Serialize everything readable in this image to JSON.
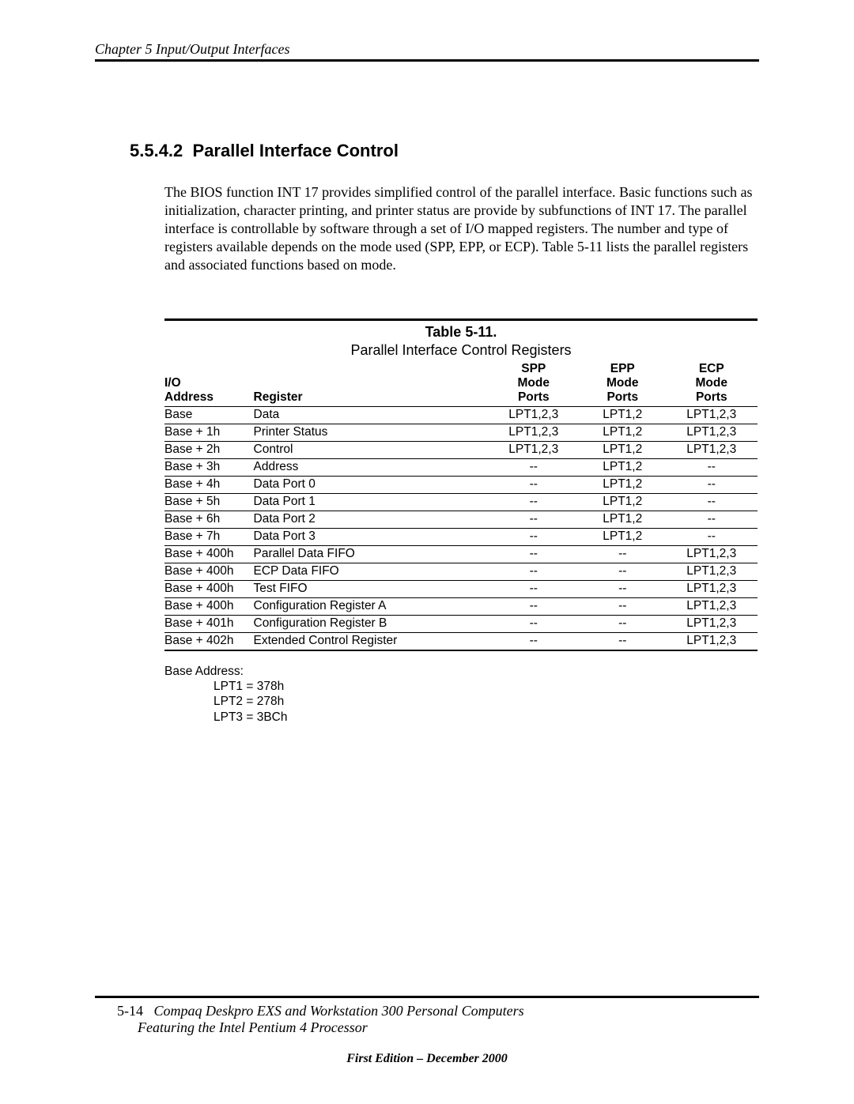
{
  "header": {
    "chapter": "Chapter 5  Input/Output Interfaces"
  },
  "section": {
    "number": "5.5.4.2",
    "title": "Parallel Interface Control"
  },
  "paragraph": "The BIOS function INT 17 provides simplified control of the parallel interface. Basic functions such as initialization, character printing,  and printer status are provide by subfunctions of INT 17. The parallel interface is controllable by software through a set of I/O mapped registers. The number and type of registers available depends on the mode used (SPP, EPP, or ECP). Table 5-11 lists the parallel registers and associated functions based on mode.",
  "table": {
    "number": "Table 5-11.",
    "caption": "Parallel Interface Control Registers",
    "columns": {
      "addr_l1": "I/O",
      "addr_l2": "Address",
      "reg": "Register",
      "spp_l1": "SPP",
      "spp_l2": "Mode",
      "spp_l3": "Ports",
      "epp_l1": "EPP",
      "epp_l2": "Mode",
      "epp_l3": "Ports",
      "ecp_l1": "ECP",
      "ecp_l2": "Mode",
      "ecp_l3": "Ports"
    },
    "rows": [
      {
        "addr": "Base",
        "reg": "Data",
        "spp": "LPT1,2,3",
        "epp": "LPT1,2",
        "ecp": "LPT1,2,3"
      },
      {
        "addr": "Base + 1h",
        "reg": "Printer Status",
        "spp": "LPT1,2,3",
        "epp": "LPT1,2",
        "ecp": "LPT1,2,3"
      },
      {
        "addr": "Base + 2h",
        "reg": "Control",
        "spp": "LPT1,2,3",
        "epp": "LPT1,2",
        "ecp": "LPT1,2,3"
      },
      {
        "addr": "Base + 3h",
        "reg": "Address",
        "spp": "--",
        "epp": "LPT1,2",
        "ecp": "--"
      },
      {
        "addr": "Base + 4h",
        "reg": "Data Port 0",
        "spp": "--",
        "epp": "LPT1,2",
        "ecp": "--"
      },
      {
        "addr": "Base + 5h",
        "reg": "Data Port 1",
        "spp": "--",
        "epp": "LPT1,2",
        "ecp": "--"
      },
      {
        "addr": "Base + 6h",
        "reg": "Data Port 2",
        "spp": "--",
        "epp": "LPT1,2",
        "ecp": "--"
      },
      {
        "addr": "Base + 7h",
        "reg": "Data Port 3",
        "spp": "--",
        "epp": "LPT1,2",
        "ecp": "--"
      },
      {
        "addr": "Base + 400h",
        "reg": "Parallel Data FIFO",
        "spp": "--",
        "epp": "--",
        "ecp": "LPT1,2,3"
      },
      {
        "addr": "Base + 400h",
        "reg": "ECP Data FIFO",
        "spp": "--",
        "epp": "--",
        "ecp": "LPT1,2,3"
      },
      {
        "addr": "Base + 400h",
        "reg": "Test FIFO",
        "spp": "--",
        "epp": "--",
        "ecp": "LPT1,2,3"
      },
      {
        "addr": "Base + 400h",
        "reg": "Configuration Register A",
        "spp": "--",
        "epp": "--",
        "ecp": "LPT1,2,3"
      },
      {
        "addr": "Base + 401h",
        "reg": "Configuration Register B",
        "spp": "--",
        "epp": "--",
        "ecp": "LPT1,2,3"
      },
      {
        "addr": "Base + 402h",
        "reg": "Extended Control Register",
        "spp": "--",
        "epp": "--",
        "ecp": "LPT1,2,3"
      }
    ]
  },
  "base_address": {
    "label": "Base Address:",
    "lpt1": "LPT1 = 378h",
    "lpt2": "LPT2 = 278h",
    "lpt3": "LPT3 = 3BCh"
  },
  "footer": {
    "page": "5-14",
    "title_line": "Compaq Deskpro EXS and Workstation 300 Personal Computers",
    "sub_line": "Featuring the Intel Pentium 4 Processor",
    "edition": "First Edition – December 2000"
  }
}
